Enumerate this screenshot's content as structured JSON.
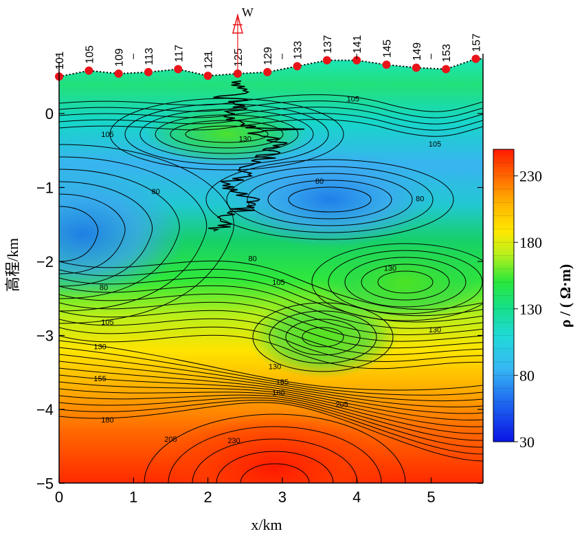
{
  "chart_data": {
    "type": "heatmap",
    "title": "",
    "xlabel": "x/km",
    "ylabel": "高程/km",
    "xlim": [
      0,
      5.7
    ],
    "ylim": [
      -5,
      0.6
    ],
    "x_ticks": [
      "0",
      "1",
      "2",
      "3",
      "4",
      "5"
    ],
    "y_ticks": [
      "0",
      "−1",
      "−2",
      "−3",
      "−4",
      "−5"
    ],
    "colorbar": {
      "title": "ρ / ( Ω·m)",
      "range": [
        30,
        250
      ],
      "ticks": [
        "230",
        "180",
        "130",
        "80",
        "30"
      ]
    },
    "stations": [
      {
        "label": "101",
        "x": 0.0,
        "elev": 0.5
      },
      {
        "label": "105",
        "x": 0.4,
        "elev": 0.58
      },
      {
        "label": "109",
        "x": 0.8,
        "elev": 0.54
      },
      {
        "label": "113",
        "x": 1.2,
        "elev": 0.56
      },
      {
        "label": "117",
        "x": 1.6,
        "elev": 0.6
      },
      {
        "label": "121",
        "x": 2.0,
        "elev": 0.51
      },
      {
        "label": "125",
        "x": 2.4,
        "elev": 0.54
      },
      {
        "label": "129",
        "x": 2.8,
        "elev": 0.56
      },
      {
        "label": "133",
        "x": 3.2,
        "elev": 0.64
      },
      {
        "label": "137",
        "x": 3.6,
        "elev": 0.72
      },
      {
        "label": "141",
        "x": 4.0,
        "elev": 0.72
      },
      {
        "label": "145",
        "x": 4.4,
        "elev": 0.66
      },
      {
        "label": "149",
        "x": 4.8,
        "elev": 0.62
      },
      {
        "label": "153",
        "x": 5.2,
        "elev": 0.6
      },
      {
        "label": "157",
        "x": 5.6,
        "elev": 0.74
      }
    ],
    "well": {
      "label": "W",
      "x": 2.4
    },
    "contour_labels": [
      {
        "text": "105",
        "x": 3.95,
        "y": 0.2
      },
      {
        "text": "105",
        "x": 0.65,
        "y": -0.28
      },
      {
        "text": "105",
        "x": 5.05,
        "y": -0.41
      },
      {
        "text": "130",
        "x": 2.5,
        "y": -0.34
      },
      {
        "text": "80",
        "x": 1.3,
        "y": -1.05
      },
      {
        "text": "80",
        "x": 3.5,
        "y": -0.91
      },
      {
        "text": "80",
        "x": 4.85,
        "y": -1.15
      },
      {
        "text": "80",
        "x": 2.6,
        "y": -1.96
      },
      {
        "text": "80",
        "x": 0.6,
        "y": -2.35
      },
      {
        "text": "105",
        "x": 2.95,
        "y": -2.28
      },
      {
        "text": "130",
        "x": 4.45,
        "y": -2.09
      },
      {
        "text": "130",
        "x": 5.05,
        "y": -2.92
      },
      {
        "text": "105",
        "x": 0.65,
        "y": -2.82
      },
      {
        "text": "130",
        "x": 0.55,
        "y": -3.15
      },
      {
        "text": "130",
        "x": 2.9,
        "y": -3.42
      },
      {
        "text": "155",
        "x": 0.55,
        "y": -3.58
      },
      {
        "text": "155",
        "x": 3.0,
        "y": -3.63
      },
      {
        "text": "180",
        "x": 2.95,
        "y": -3.77
      },
      {
        "text": "205",
        "x": 3.8,
        "y": -3.93
      },
      {
        "text": "180",
        "x": 0.65,
        "y": -4.14
      },
      {
        "text": "205",
        "x": 1.5,
        "y": -4.4
      },
      {
        "text": "230",
        "x": 2.35,
        "y": -4.42
      }
    ],
    "grid": false,
    "legend": "colorbar-right"
  },
  "colors": {
    "station_marker": "#e8141a",
    "well_marker": "#e8141a",
    "well_log": "#000000",
    "contour_line": "#000000"
  }
}
